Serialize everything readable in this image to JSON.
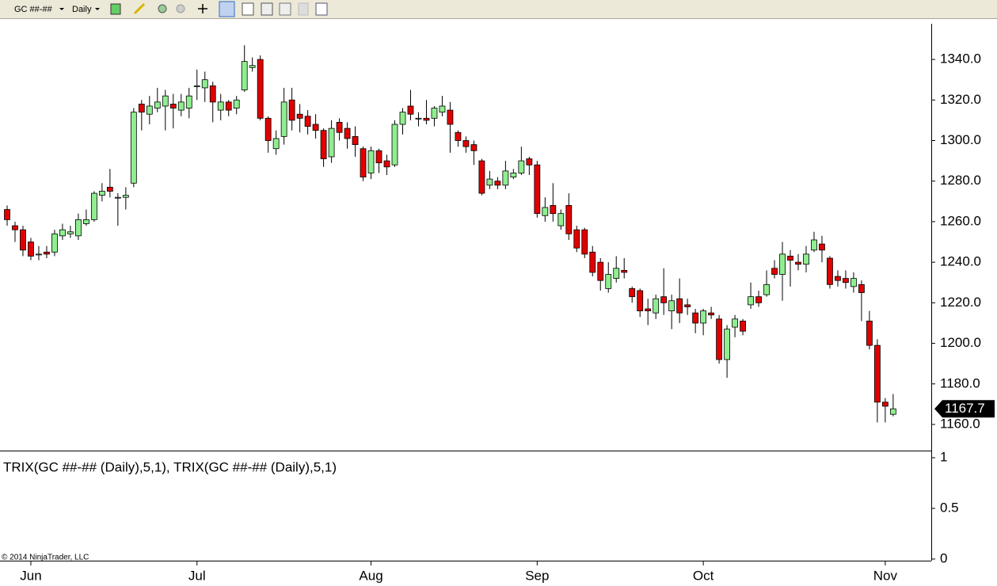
{
  "toolbar": {
    "instrument": "GC ##-##",
    "period": "Daily"
  },
  "footer": {
    "copyright": "© 2014 NinjaTrader, LLC"
  },
  "chart_data": [
    {
      "type": "candlestick",
      "categories": [
        null,
        null,
        null,
        "Jun",
        null,
        null,
        null,
        null,
        null,
        null,
        null,
        null,
        null,
        null,
        null,
        null,
        null,
        null,
        null,
        null,
        null,
        null,
        null,
        null,
        "Jul",
        null,
        null,
        null,
        null,
        null,
        null,
        null,
        null,
        null,
        null,
        null,
        null,
        null,
        null,
        null,
        null,
        null,
        null,
        null,
        null,
        null,
        "Aug",
        null,
        null,
        null,
        null,
        null,
        null,
        null,
        null,
        null,
        null,
        null,
        null,
        null,
        null,
        null,
        null,
        null,
        null,
        null,
        null,
        "Sep",
        null,
        null,
        null,
        null,
        null,
        null,
        null,
        null,
        null,
        null,
        null,
        null,
        null,
        null,
        null,
        null,
        null,
        null,
        null,
        null,
        "Oct",
        null,
        null,
        null,
        null,
        null,
        null,
        null,
        null,
        null,
        null,
        null,
        null,
        null,
        null,
        null,
        null,
        null,
        null,
        null,
        null,
        null,
        null,
        "Nov",
        null
      ],
      "open": [
        1266,
        1258,
        1256,
        1250,
        1244,
        1245,
        1245,
        1253,
        1254,
        1253,
        1259,
        1261,
        1273,
        1277,
        1272,
        1272,
        1279,
        1318,
        1313,
        1316,
        1317,
        1318,
        1315,
        1316,
        1327,
        1326,
        1327,
        1315,
        1319,
        1316,
        1325,
        1336,
        1340,
        1311,
        1296,
        1302,
        1320,
        1313,
        1312,
        1308,
        1305,
        1292,
        1309,
        1306,
        1302,
        1296,
        1284,
        1295,
        1290,
        1288,
        1308,
        1317,
        1311,
        1311,
        1311,
        1314,
        1315,
        1304,
        1300,
        1298,
        1290,
        1278,
        1280,
        1278,
        1282,
        1284,
        1291,
        1288,
        1263,
        1268,
        1258,
        1268,
        1256,
        1256,
        1245,
        1240,
        1227,
        1232,
        1236,
        1227,
        1226,
        1217,
        1215,
        1223,
        1216,
        1222,
        1219,
        1215,
        1210,
        1215,
        1212,
        1192,
        1208,
        1211,
        1219,
        1223,
        1224,
        1237,
        1234,
        1243,
        1240,
        1239,
        1246,
        1249,
        1242,
        1233,
        1232,
        1228,
        1229,
        1211,
        1199,
        1171,
        1165
      ],
      "high": [
        1268,
        1260,
        1258,
        1252,
        1248,
        1248,
        1256,
        1259,
        1258,
        1264,
        1266,
        1275,
        1279,
        1286,
        1274,
        1277,
        1316,
        1320,
        1322,
        1326,
        1325,
        1323,
        1323,
        1326,
        1335,
        1334,
        1329,
        1323,
        1320,
        1322,
        1347,
        1341,
        1342,
        1312,
        1305,
        1326,
        1326,
        1318,
        1315,
        1313,
        1306,
        1310,
        1311,
        1309,
        1307,
        1297,
        1297,
        1296,
        1293,
        1310,
        1316,
        1325,
        1314,
        1320,
        1317,
        1322,
        1319,
        1305,
        1302,
        1300,
        1291,
        1285,
        1282,
        1290,
        1286,
        1297,
        1292,
        1290,
        1272,
        1279,
        1266,
        1274,
        1258,
        1257,
        1248,
        1242,
        1240,
        1243,
        1242,
        1228,
        1227,
        1222,
        1224,
        1237,
        1224,
        1232,
        1222,
        1217,
        1217,
        1218,
        1214,
        1209,
        1214,
        1212,
        1230,
        1226,
        1236,
        1241,
        1250,
        1246,
        1244,
        1248,
        1255,
        1253,
        1243,
        1236,
        1236,
        1235,
        1231,
        1216,
        1202,
        1173,
        1175
      ],
      "low": [
        1258,
        1250,
        1243,
        1241,
        1241,
        1242,
        1243,
        1251,
        1252,
        1251,
        1258,
        1260,
        1270,
        1272,
        1258,
        1266,
        1277,
        1305,
        1308,
        1314,
        1305,
        1306,
        1312,
        1311,
        1320,
        1319,
        1309,
        1310,
        1312,
        1313,
        1324,
        1334,
        1310,
        1294,
        1293,
        1298,
        1305,
        1304,
        1303,
        1301,
        1287,
        1289,
        1300,
        1296,
        1292,
        1280,
        1281,
        1284,
        1283,
        1287,
        1303,
        1310,
        1307,
        1308,
        1307,
        1312,
        1294,
        1297,
        1294,
        1288,
        1273,
        1276,
        1276,
        1276,
        1281,
        1283,
        1283,
        1262,
        1260,
        1260,
        1256,
        1251,
        1245,
        1242,
        1233,
        1226,
        1225,
        1230,
        1232,
        1220,
        1213,
        1209,
        1212,
        1214,
        1207,
        1210,
        1214,
        1205,
        1204,
        1212,
        1190,
        1183,
        1203,
        1204,
        1217,
        1218,
        1223,
        1232,
        1221,
        1228,
        1236,
        1235,
        1245,
        1240,
        1227,
        1228,
        1227,
        1225,
        1211,
        1197,
        1161,
        1161,
        1164
      ],
      "close": [
        1261,
        1256,
        1246,
        1243,
        1244,
        1244,
        1254,
        1256,
        1255,
        1261,
        1261,
        1274,
        1275,
        1275,
        1272,
        1273,
        1314,
        1314,
        1317,
        1319,
        1322,
        1316,
        1319,
        1322,
        1327,
        1330,
        1319,
        1319,
        1315,
        1320,
        1339,
        1337,
        1311,
        1300,
        1301,
        1319,
        1310,
        1311,
        1307,
        1305,
        1291,
        1306,
        1304,
        1301,
        1298,
        1282,
        1295,
        1289,
        1287,
        1308,
        1314,
        1313,
        1311,
        1310,
        1316,
        1317,
        1308,
        1300,
        1297,
        1295,
        1274,
        1281,
        1278,
        1285,
        1284,
        1290,
        1288,
        1264,
        1267,
        1264,
        1264,
        1254,
        1247,
        1244,
        1235,
        1231,
        1234,
        1237,
        1235,
        1223,
        1216,
        1216,
        1222,
        1220,
        1221,
        1215,
        1218,
        1210,
        1216,
        1214,
        1192,
        1207,
        1212,
        1206,
        1223,
        1220,
        1229,
        1234,
        1244,
        1241,
        1239,
        1244,
        1251,
        1246,
        1229,
        1231,
        1230,
        1232,
        1225,
        1199,
        1171,
        1169,
        1167.7
      ],
      "up_color": "#90ee90",
      "down_color": "#e00000",
      "ylim": [
        1147.5,
        1357.6
      ],
      "yticks": [
        {
          "value": 1160,
          "label": "1160.0"
        },
        {
          "value": 1180,
          "label": "1180.0"
        },
        {
          "value": 1200,
          "label": "1200.0"
        },
        {
          "value": 1220,
          "label": "1220.0"
        },
        {
          "value": 1240,
          "label": "1240.0"
        },
        {
          "value": 1260,
          "label": "1260.0"
        },
        {
          "value": 1280,
          "label": "1280.0"
        },
        {
          "value": 1300,
          "label": "1300.0"
        },
        {
          "value": 1320,
          "label": "1320.0"
        },
        {
          "value": 1340,
          "label": "1340.0"
        }
      ],
      "last_price": 1167.7,
      "grid": false
    },
    {
      "type": "indicator",
      "title": "TRIX(GC ##-## (Daily),5,1), TRIX(GC ##-## (Daily),5,1)",
      "ylim": [
        -0.016,
        1.0625
      ],
      "yticks": [
        0,
        0.5,
        1
      ]
    }
  ]
}
